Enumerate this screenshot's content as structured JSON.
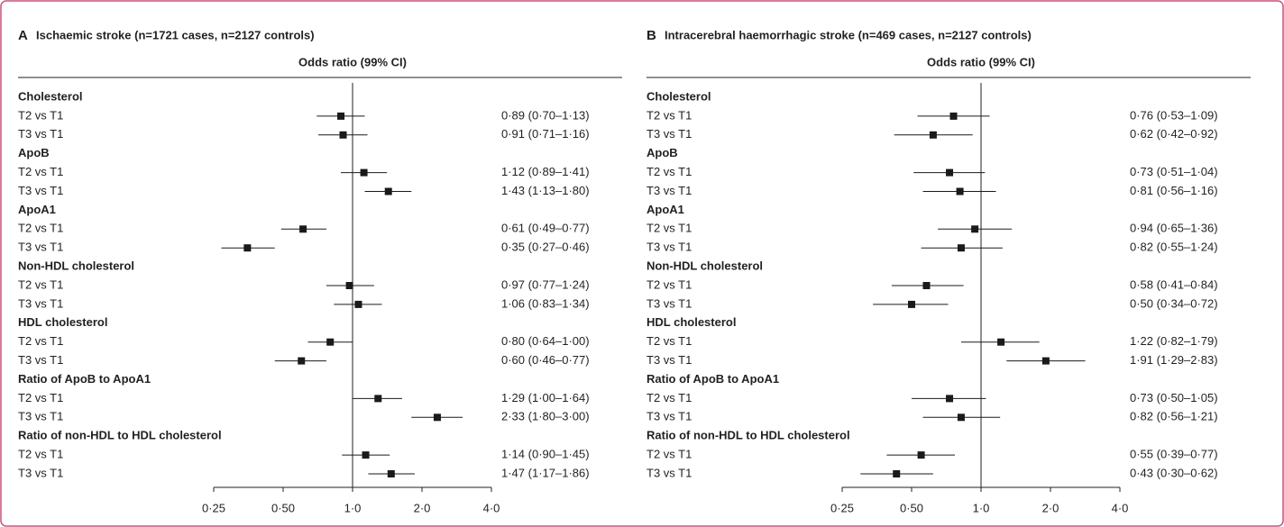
{
  "chart_data": [
    {
      "type": "forest",
      "panel": "A",
      "title": "Ischaemic stroke (n=1721 cases, n=2127 controls)",
      "xlabel": "Odds ratio (99% CI)",
      "log_scale": true,
      "xlim": [
        0.25,
        4
      ],
      "reference_line": 1,
      "color": "#1a1a1a",
      "xticks": [
        {
          "value": 0.25,
          "label": "0·25"
        },
        {
          "value": 0.5,
          "label": "0·50"
        },
        {
          "value": 1,
          "label": "1·0"
        },
        {
          "value": 2,
          "label": "2·0"
        },
        {
          "value": 4,
          "label": "4·0"
        }
      ],
      "groups": [
        {
          "name": "Cholesterol",
          "rows": [
            {
              "label": "T2 vs T1",
              "value": 0.89,
              "low": 0.7,
              "high": 1.13,
              "value_label": "0·89 (0·70–1·13)"
            },
            {
              "label": "T3 vs T1",
              "value": 0.91,
              "low": 0.71,
              "high": 1.16,
              "value_label": "0·91 (0·71–1·16)"
            }
          ]
        },
        {
          "name": "ApoB",
          "rows": [
            {
              "label": "T2 vs T1",
              "value": 1.12,
              "low": 0.89,
              "high": 1.41,
              "value_label": "1·12 (0·89–1·41)"
            },
            {
              "label": "T3 vs T1",
              "value": 1.43,
              "low": 1.13,
              "high": 1.8,
              "value_label": "1·43 (1·13–1·80)"
            }
          ]
        },
        {
          "name": "ApoA1",
          "rows": [
            {
              "label": "T2 vs T1",
              "value": 0.61,
              "low": 0.49,
              "high": 0.77,
              "value_label": "0·61 (0·49–0·77)"
            },
            {
              "label": "T3 vs T1",
              "value": 0.35,
              "low": 0.27,
              "high": 0.46,
              "value_label": "0·35 (0·27–0·46)"
            }
          ]
        },
        {
          "name": "Non-HDL cholesterol",
          "rows": [
            {
              "label": "T2 vs T1",
              "value": 0.97,
              "low": 0.77,
              "high": 1.24,
              "value_label": "0·97 (0·77–1·24)"
            },
            {
              "label": "T3 vs T1",
              "value": 1.06,
              "low": 0.83,
              "high": 1.34,
              "value_label": "1·06 (0·83–1·34)"
            }
          ]
        },
        {
          "name": "HDL cholesterol",
          "rows": [
            {
              "label": "T2 vs T1",
              "value": 0.8,
              "low": 0.64,
              "high": 1.0,
              "value_label": "0·80 (0·64–1·00)"
            },
            {
              "label": "T3 vs T1",
              "value": 0.6,
              "low": 0.46,
              "high": 0.77,
              "value_label": "0·60 (0·46–0·77)"
            }
          ]
        },
        {
          "name": "Ratio of ApoB to ApoA1",
          "rows": [
            {
              "label": "T2 vs T1",
              "value": 1.29,
              "low": 1.0,
              "high": 1.64,
              "value_label": "1·29 (1·00–1·64)"
            },
            {
              "label": "T3 vs T1",
              "value": 2.33,
              "low": 1.8,
              "high": 3.0,
              "value_label": "2·33 (1·80–3·00)"
            }
          ]
        },
        {
          "name": "Ratio of non-HDL to HDL cholesterol",
          "rows": [
            {
              "label": "T2 vs T1",
              "value": 1.14,
              "low": 0.9,
              "high": 1.45,
              "value_label": "1·14 (0·90–1·45)"
            },
            {
              "label": "T3 vs T1",
              "value": 1.47,
              "low": 1.17,
              "high": 1.86,
              "value_label": "1·47 (1·17–1·86)"
            }
          ]
        }
      ]
    },
    {
      "type": "forest",
      "panel": "B",
      "title": "Intracerebral haemorrhagic stroke (n=469 cases, n=2127 controls)",
      "xlabel": "Odds ratio (99% CI)",
      "log_scale": true,
      "xlim": [
        0.25,
        4
      ],
      "reference_line": 1,
      "color": "#1a1a1a",
      "xticks": [
        {
          "value": 0.25,
          "label": "0·25"
        },
        {
          "value": 0.5,
          "label": "0·50"
        },
        {
          "value": 1,
          "label": "1·0"
        },
        {
          "value": 2,
          "label": "2·0"
        },
        {
          "value": 4,
          "label": "4·0"
        }
      ],
      "groups": [
        {
          "name": "Cholesterol",
          "rows": [
            {
              "label": "T2 vs T1",
              "value": 0.76,
              "low": 0.53,
              "high": 1.09,
              "value_label": "0·76 (0·53–1·09)"
            },
            {
              "label": "T3 vs T1",
              "value": 0.62,
              "low": 0.42,
              "high": 0.92,
              "value_label": "0·62 (0·42–0·92)"
            }
          ]
        },
        {
          "name": "ApoB",
          "rows": [
            {
              "label": "T2 vs T1",
              "value": 0.73,
              "low": 0.51,
              "high": 1.04,
              "value_label": "0·73 (0·51–1·04)"
            },
            {
              "label": "T3 vs T1",
              "value": 0.81,
              "low": 0.56,
              "high": 1.16,
              "value_label": "0·81 (0·56–1·16)"
            }
          ]
        },
        {
          "name": "ApoA1",
          "rows": [
            {
              "label": "T2 vs T1",
              "value": 0.94,
              "low": 0.65,
              "high": 1.36,
              "value_label": "0·94 (0·65–1·36)"
            },
            {
              "label": "T3 vs T1",
              "value": 0.82,
              "low": 0.55,
              "high": 1.24,
              "value_label": "0·82 (0·55–1·24)"
            }
          ]
        },
        {
          "name": "Non-HDL cholesterol",
          "rows": [
            {
              "label": "T2 vs T1",
              "value": 0.58,
              "low": 0.41,
              "high": 0.84,
              "value_label": "0·58 (0·41–0·84)"
            },
            {
              "label": "T3 vs T1",
              "value": 0.5,
              "low": 0.34,
              "high": 0.72,
              "value_label": "0·50 (0·34–0·72)"
            }
          ]
        },
        {
          "name": "HDL cholesterol",
          "rows": [
            {
              "label": "T2 vs T1",
              "value": 1.22,
              "low": 0.82,
              "high": 1.79,
              "value_label": "1·22 (0·82–1·79)"
            },
            {
              "label": "T3 vs T1",
              "value": 1.91,
              "low": 1.29,
              "high": 2.83,
              "value_label": "1·91 (1·29–2·83)"
            }
          ]
        },
        {
          "name": "Ratio of ApoB to ApoA1",
          "rows": [
            {
              "label": "T2 vs T1",
              "value": 0.73,
              "low": 0.5,
              "high": 1.05,
              "value_label": "0·73 (0·50–1·05)"
            },
            {
              "label": "T3 vs T1",
              "value": 0.82,
              "low": 0.56,
              "high": 1.21,
              "value_label": "0·82 (0·56–1·21)"
            }
          ]
        },
        {
          "name": "Ratio of non-HDL to HDL cholesterol",
          "rows": [
            {
              "label": "T2 vs T1",
              "value": 0.55,
              "low": 0.39,
              "high": 0.77,
              "value_label": "0·55 (0·39–0·77)"
            },
            {
              "label": "T3 vs T1",
              "value": 0.43,
              "low": 0.3,
              "high": 0.62,
              "value_label": "0·43 (0·30–0·62)"
            }
          ]
        }
      ]
    }
  ]
}
